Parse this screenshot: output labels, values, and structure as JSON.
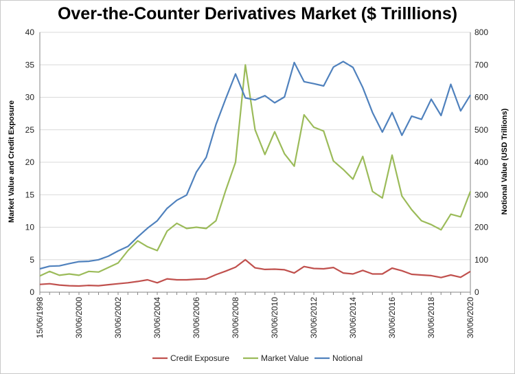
{
  "chart_data": {
    "type": "line",
    "title": "Over-the-Counter Derivatives Market ($ Trilllions)",
    "ylabel_left": "Market Value and Credit Exposure",
    "ylabel_right": "Notional Value (USD Trillions)",
    "ylim_left": [
      0,
      40
    ],
    "ylim_right": [
      0,
      800
    ],
    "yticks_left": [
      "0",
      "5",
      "10",
      "15",
      "20",
      "25",
      "30",
      "35",
      "40"
    ],
    "yticks_right": [
      "0",
      "100",
      "200",
      "300",
      "400",
      "500",
      "600",
      "700",
      "800"
    ],
    "x_labels": [
      "15/06/1998",
      "30/06/2000",
      "30/06/2002",
      "30/06/2004",
      "30/06/2006",
      "30/06/2008",
      "30/06/2010",
      "30/06/2012",
      "30/06/2014",
      "30/06/2016",
      "30/06/2018",
      "30/06/2020"
    ],
    "x_period": "semi-annual",
    "grid": "horizontal",
    "legend_position": "bottom",
    "series": [
      {
        "name": "Credit Exposure",
        "axis": "left",
        "color": "#c0504d",
        "values": [
          1.2,
          1.3,
          1.1,
          1.0,
          0.95,
          1.05,
          1.0,
          1.15,
          1.3,
          1.45,
          1.65,
          1.9,
          1.45,
          2.05,
          1.9,
          1.9,
          2.0,
          2.05,
          2.7,
          3.25,
          3.85,
          5.0,
          3.75,
          3.5,
          3.55,
          3.45,
          2.95,
          3.95,
          3.65,
          3.6,
          3.8,
          2.95,
          2.8,
          3.35,
          2.8,
          2.8,
          3.7,
          3.3,
          2.75,
          2.65,
          2.55,
          2.25,
          2.65,
          2.3,
          3.2
        ]
      },
      {
        "name": "Market Value",
        "axis": "left",
        "color": "#9bbb59",
        "values": [
          2.5,
          3.2,
          2.6,
          2.8,
          2.6,
          3.2,
          3.1,
          3.8,
          4.5,
          6.4,
          7.9,
          7.0,
          6.4,
          9.4,
          10.6,
          9.8,
          10.0,
          9.8,
          11.0,
          15.7,
          20.0,
          35.0,
          25.0,
          21.2,
          24.7,
          21.3,
          19.4,
          27.3,
          25.4,
          24.8,
          20.2,
          18.9,
          17.4,
          20.9,
          15.5,
          14.5,
          21.1,
          14.8,
          12.7,
          11.0,
          10.4,
          9.6,
          12.0,
          11.6,
          15.5
        ]
      },
      {
        "name": "Notional",
        "axis": "right",
        "color": "#4f81bd",
        "values": [
          72,
          80,
          81,
          88,
          94,
          95,
          100,
          111,
          127,
          141,
          170,
          197,
          220,
          258,
          283,
          299,
          370,
          415,
          516,
          596,
          672,
          598,
          592,
          605,
          583,
          601,
          707,
          648,
          642,
          635,
          693,
          710,
          692,
          630,
          553,
          493,
          553,
          483,
          542,
          532,
          594,
          544,
          640,
          558,
          607
        ]
      }
    ]
  }
}
